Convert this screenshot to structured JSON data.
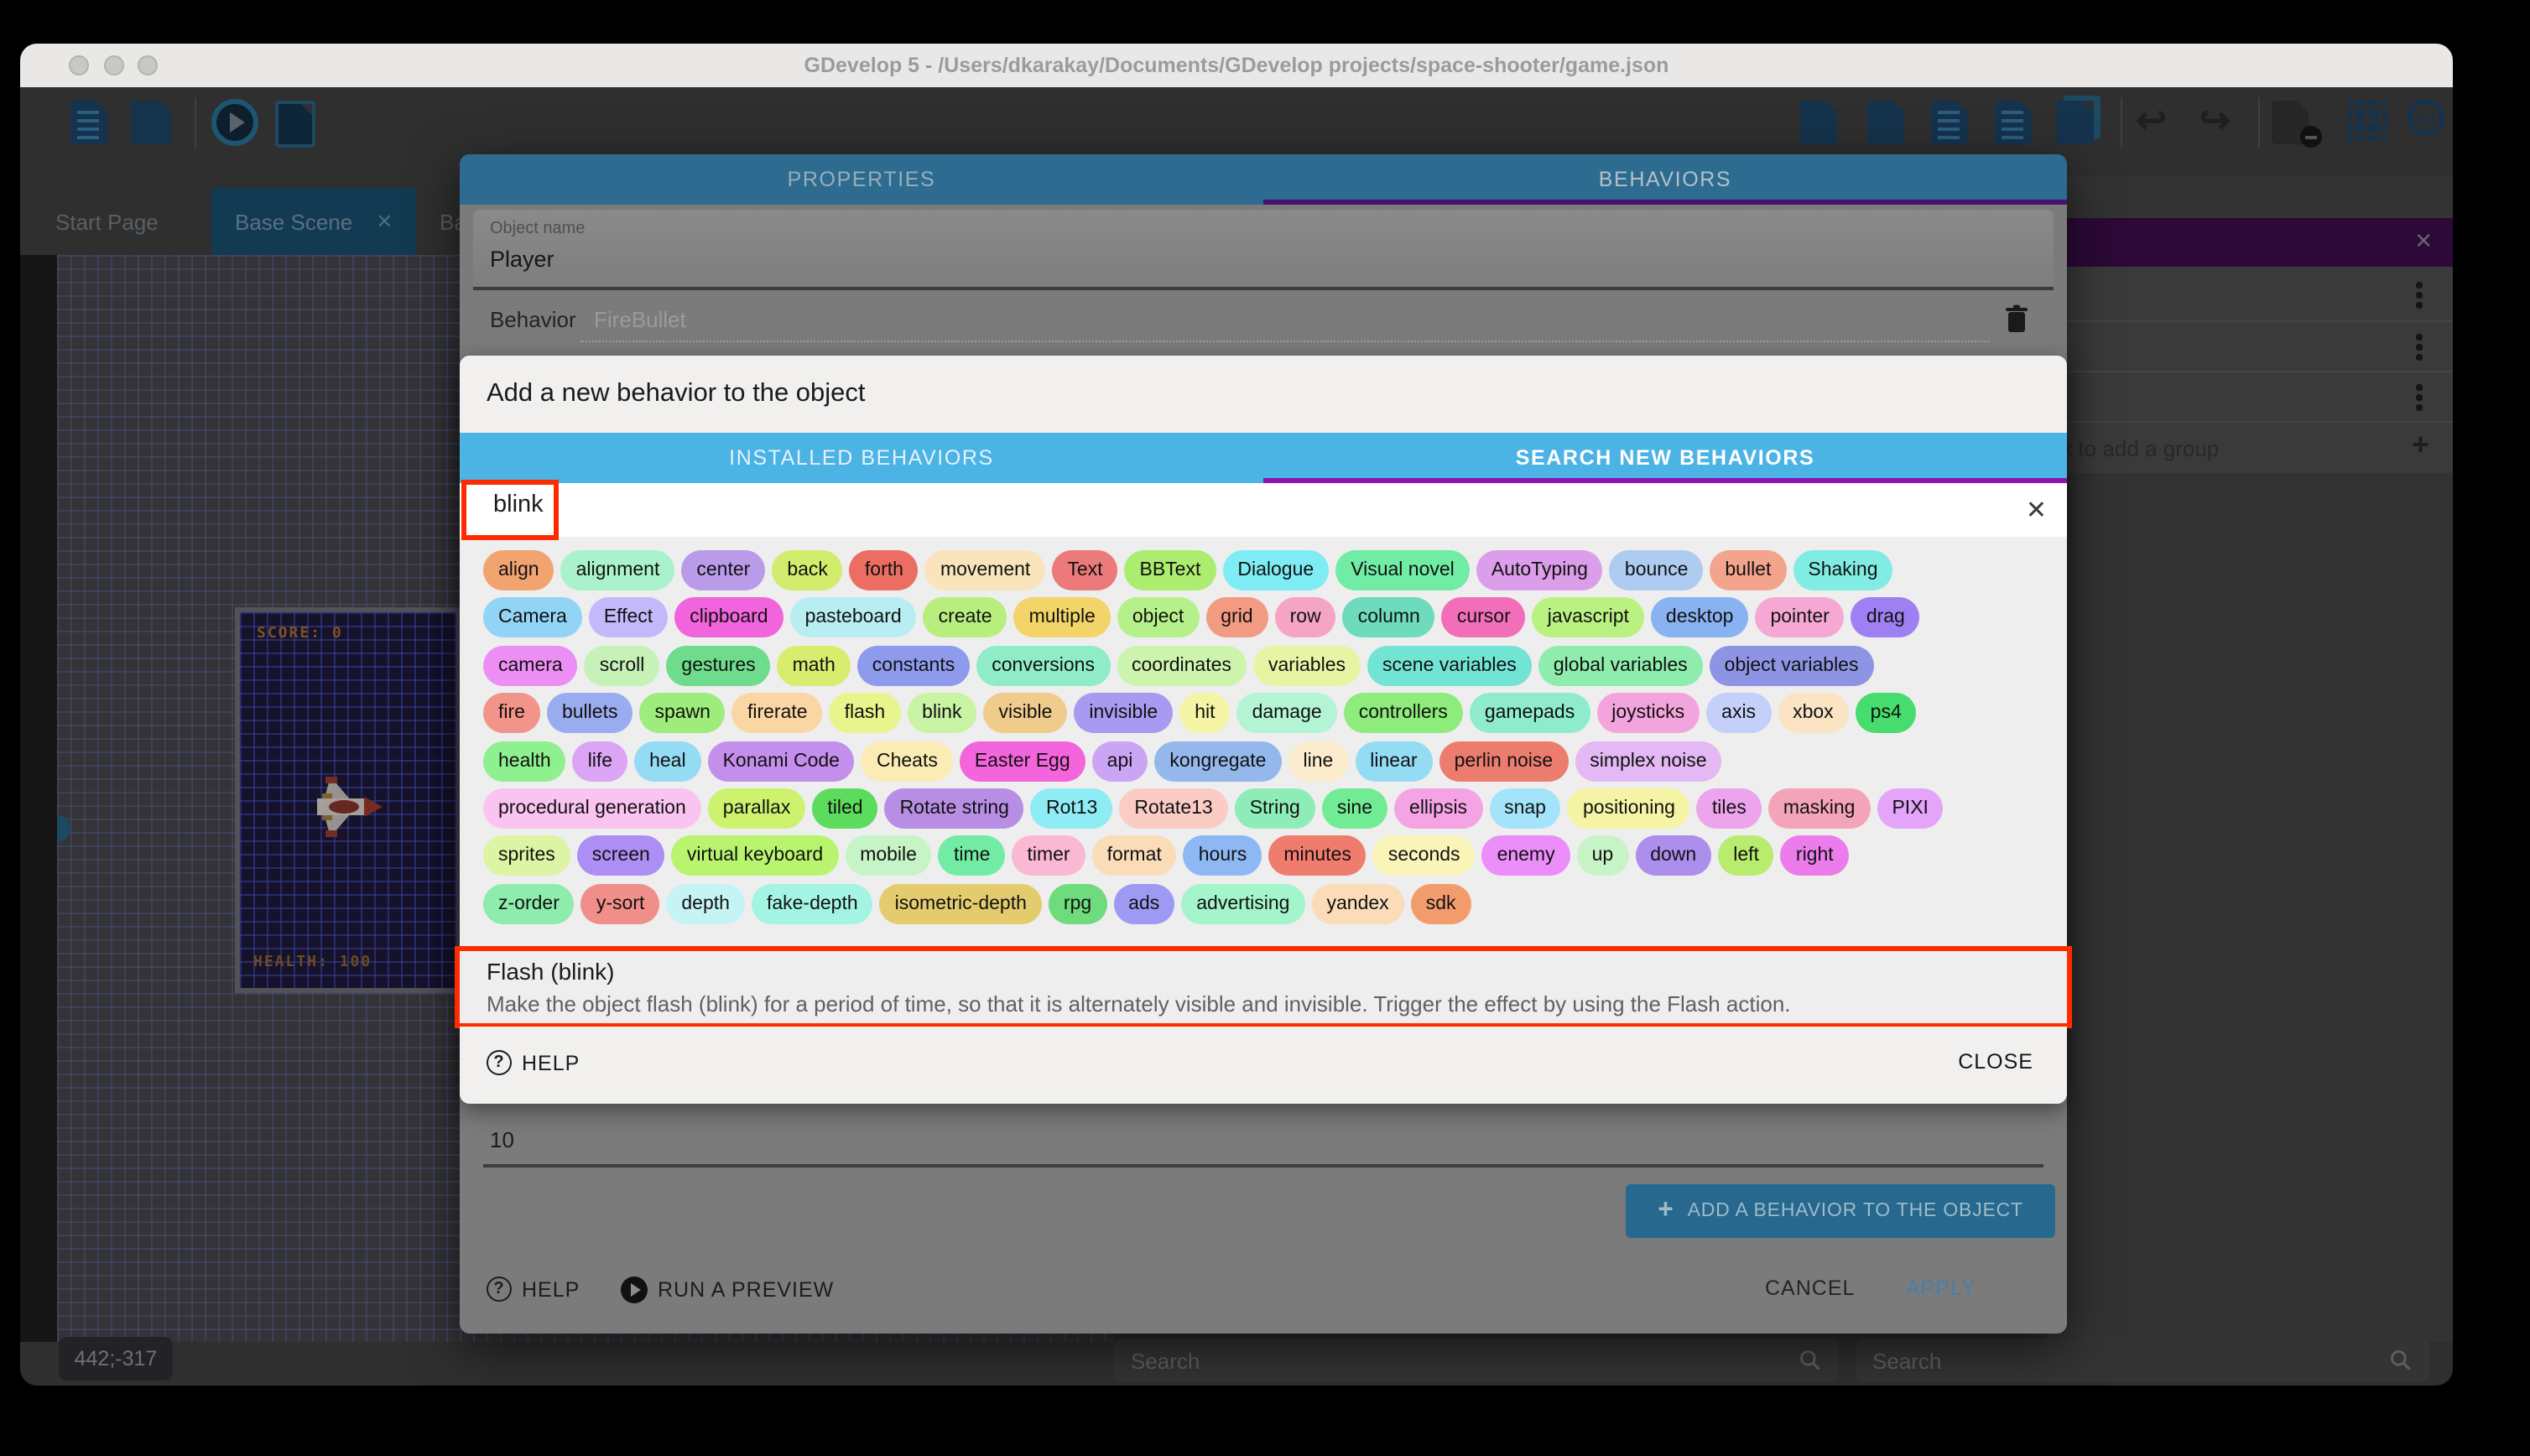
{
  "window": {
    "title": "GDevelop 5 - /Users/dkarakay/Documents/GDevelop projects/space-shooter/game.json"
  },
  "tabs": [
    {
      "label": "Start Page"
    },
    {
      "label": "Base Scene",
      "close": "✕"
    },
    {
      "label": "Ba"
    }
  ],
  "scene": {
    "coords": "442;-317",
    "score_text": "SCORE: 0",
    "health_text": "HEALTH: 100"
  },
  "right_panel": {
    "add_group_label": "Click to add a group",
    "close_icon": "✕",
    "plus_icon": "+"
  },
  "bottom": {
    "search_placeholder_left": "Search",
    "search_placeholder_right": "Search"
  },
  "behavior_dialog": {
    "tab_properties": "PROPERTIES",
    "tab_behaviors": "BEHAVIORS",
    "object_name_label": "Object name",
    "object_name_value": "Player",
    "behavior_label": "Behavior",
    "behavior_value": "FireBullet",
    "field_value": "10",
    "add_button_label": "ADD A BEHAVIOR TO THE OBJECT",
    "help_label": "HELP",
    "run_preview_label": "RUN A PREVIEW",
    "cancel_label": "CANCEL",
    "apply_label": "APPLY"
  },
  "add_behavior_modal": {
    "title": "Add a new behavior to the object",
    "tab_installed": "INSTALLED BEHAVIORS",
    "tab_search": "SEARCH NEW BEHAVIORS",
    "search_value": "blink",
    "close_x": "✕",
    "result_name": "Flash (blink)",
    "result_description": "Make the object flash (blink) for a period of time, so that it is alternately visible and invisible. Trigger the effect by using the Flash action.",
    "help_label": "HELP",
    "close_label": "CLOSE",
    "tag_rows": [
      [
        {
          "label": "align",
          "color": "#F2A470"
        },
        {
          "label": "alignment",
          "color": "#A9F2CB"
        },
        {
          "label": "center",
          "color": "#BA9BEA"
        },
        {
          "label": "back",
          "color": "#D2EC6E"
        },
        {
          "label": "forth",
          "color": "#EC6E62"
        },
        {
          "label": "movement",
          "color": "#FAE4BC"
        },
        {
          "label": "Text",
          "color": "#EC7A7A"
        },
        {
          "label": "BBText",
          "color": "#ACEC6E"
        },
        {
          "label": "Dialogue",
          "color": "#7EECF4"
        },
        {
          "label": "Visual novel",
          "color": "#70ECA4"
        },
        {
          "label": "AutoTyping",
          "color": "#DC9EEA"
        },
        {
          "label": "bounce",
          "color": "#AECBF2"
        },
        {
          "label": "bullet",
          "color": "#F2A48C"
        },
        {
          "label": "Shaking",
          "color": "#80ECE4"
        }
      ],
      [
        {
          "label": "Camera",
          "color": "#92D4F6"
        },
        {
          "label": "Effect",
          "color": "#C4B8FA"
        },
        {
          "label": "clipboard",
          "color": "#F264DE"
        },
        {
          "label": "pasteboard",
          "color": "#B8EEF2"
        },
        {
          "label": "create",
          "color": "#B8EE7E"
        },
        {
          "label": "multiple",
          "color": "#F2D468"
        },
        {
          "label": "object",
          "color": "#B6F08A"
        },
        {
          "label": "grid",
          "color": "#F29B82"
        },
        {
          "label": "row",
          "color": "#F6A4C4"
        },
        {
          "label": "column",
          "color": "#6EDCBC"
        },
        {
          "label": "cursor",
          "color": "#F26EB8"
        },
        {
          "label": "javascript",
          "color": "#BAF282"
        },
        {
          "label": "desktop",
          "color": "#88B2F2"
        },
        {
          "label": "pointer",
          "color": "#F6A8D4"
        },
        {
          "label": "drag",
          "color": "#9E80F2"
        }
      ],
      [
        {
          "label": "camera",
          "color": "#EC8EF4"
        },
        {
          "label": "scroll",
          "color": "#C6F2B8"
        },
        {
          "label": "gestures",
          "color": "#6EDC8C"
        },
        {
          "label": "math",
          "color": "#D8EC6E"
        },
        {
          "label": "constants",
          "color": "#8E9AEC"
        },
        {
          "label": "conversions",
          "color": "#8EECC6"
        },
        {
          "label": "coordinates",
          "color": "#CCF4AC"
        },
        {
          "label": "variables",
          "color": "#E8F4A4"
        },
        {
          "label": "scene variables",
          "color": "#72E4D4"
        },
        {
          "label": "global variables",
          "color": "#8EECAC"
        },
        {
          "label": "object variables",
          "color": "#8E94E4"
        }
      ],
      [
        {
          "label": "fire",
          "color": "#F29489"
        },
        {
          "label": "bullets",
          "color": "#9AACF0"
        },
        {
          "label": "spawn",
          "color": "#9EEC7C"
        },
        {
          "label": "firerate",
          "color": "#FAD6A4"
        },
        {
          "label": "flash",
          "color": "#E8F48C"
        },
        {
          "label": "blink",
          "color": "#C8F4A4"
        },
        {
          "label": "visible",
          "color": "#F0CC8C"
        },
        {
          "label": "invisible",
          "color": "#A89AF0"
        },
        {
          "label": "hit",
          "color": "#F4F4A4"
        },
        {
          "label": "damage",
          "color": "#B2F4D4"
        },
        {
          "label": "controllers",
          "color": "#8EEC7C"
        },
        {
          "label": "gamepads",
          "color": "#8EECCC"
        },
        {
          "label": "joysticks",
          "color": "#F4A4DC"
        },
        {
          "label": "axis",
          "color": "#C4D0FA"
        },
        {
          "label": "xbox",
          "color": "#FAE4C4"
        },
        {
          "label": "ps4",
          "color": "#46DC6E"
        }
      ],
      [
        {
          "label": "health",
          "color": "#8EF08E"
        },
        {
          "label": "life",
          "color": "#DCA4F4"
        },
        {
          "label": "heal",
          "color": "#94DCF4"
        },
        {
          "label": "Konami Code",
          "color": "#C48EEC"
        },
        {
          "label": "Cheats",
          "color": "#FAECB4"
        },
        {
          "label": "Easter Egg",
          "color": "#F464DC"
        },
        {
          "label": "api",
          "color": "#CCA4F4"
        },
        {
          "label": "kongregate",
          "color": "#94B8EC"
        },
        {
          "label": "line",
          "color": "#FAECCC"
        },
        {
          "label": "linear",
          "color": "#94DCF4"
        },
        {
          "label": "perlin noise",
          "color": "#EC7C6E"
        },
        {
          "label": "simplex noise",
          "color": "#E4B8F4"
        }
      ],
      [
        {
          "label": "procedural generation",
          "color": "#FAC4F0"
        },
        {
          "label": "parallax",
          "color": "#CCF26E"
        },
        {
          "label": "tiled",
          "color": "#5CDC5C"
        },
        {
          "label": "Rotate string",
          "color": "#B88EE4"
        },
        {
          "label": "Rot13",
          "color": "#8EECF4"
        },
        {
          "label": "Rotate13",
          "color": "#FACCC4"
        },
        {
          "label": "String",
          "color": "#8EECB8"
        },
        {
          "label": "sine",
          "color": "#72EC94"
        },
        {
          "label": "ellipsis",
          "color": "#F4A4E4"
        },
        {
          "label": "snap",
          "color": "#A4E4FA"
        },
        {
          "label": "positioning",
          "color": "#F4F4A4"
        },
        {
          "label": "tiles",
          "color": "#ECA4EC"
        },
        {
          "label": "masking",
          "color": "#F4A4B8"
        },
        {
          "label": "PIXI",
          "color": "#E4A4FA"
        }
      ],
      [
        {
          "label": "sprites",
          "color": "#DCF4A4"
        },
        {
          "label": "screen",
          "color": "#AC8EF4"
        },
        {
          "label": "virtual keyboard",
          "color": "#B8F46E"
        },
        {
          "label": "mobile",
          "color": "#C6F4C6"
        },
        {
          "label": "time",
          "color": "#72ECA4"
        },
        {
          "label": "timer",
          "color": "#FAB8D4"
        },
        {
          "label": "format",
          "color": "#FADCB8"
        },
        {
          "label": "hours",
          "color": "#8EB8F4"
        },
        {
          "label": "minutes",
          "color": "#F07C6E"
        },
        {
          "label": "seconds",
          "color": "#FAF4B8"
        },
        {
          "label": "enemy",
          "color": "#EC8EFA"
        },
        {
          "label": "up",
          "color": "#C6F4C6"
        },
        {
          "label": "down",
          "color": "#AC8EEC"
        },
        {
          "label": "left",
          "color": "#B8EC6E"
        },
        {
          "label": "right",
          "color": "#EC7CEC"
        }
      ],
      [
        {
          "label": "z-order",
          "color": "#8EECAC"
        },
        {
          "label": "y-sort",
          "color": "#F08E8A"
        },
        {
          "label": "depth",
          "color": "#C6F4F4"
        },
        {
          "label": "fake-depth",
          "color": "#A4F4E4"
        },
        {
          "label": "isometric-depth",
          "color": "#E4CC6E"
        },
        {
          "label": "rpg",
          "color": "#6EDC7C"
        },
        {
          "label": "ads",
          "color": "#9E9AF4"
        },
        {
          "label": "advertising",
          "color": "#A4F4CC"
        },
        {
          "label": "yandex",
          "color": "#FADCB8"
        },
        {
          "label": "sdk",
          "color": "#F29C6E"
        }
      ]
    ]
  },
  "colors": {
    "dialog_header_teal": "#2d6c90",
    "modal_tab_blue": "#4cb3e5",
    "active_tab_purple": "#8f13b2",
    "dimmed_purple": "#4c0e72",
    "annotation_red": "#fe2b00",
    "add_button_blue": "#26688e",
    "right_panel_purple": "#2c0937"
  }
}
